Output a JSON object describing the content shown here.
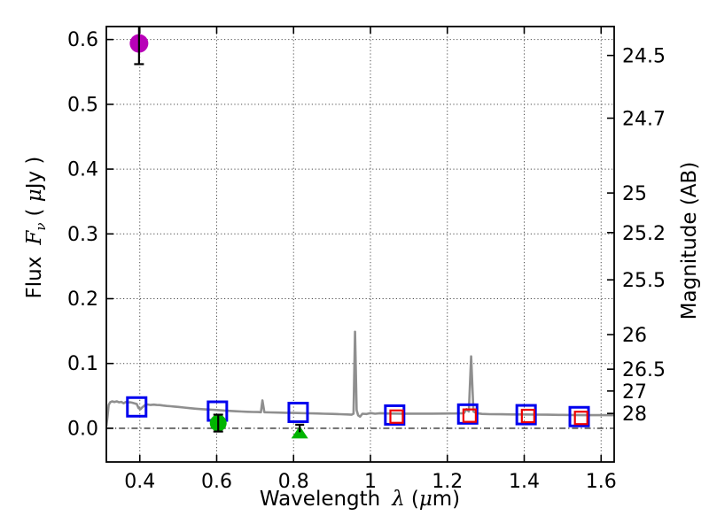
{
  "chart_data": {
    "type": "line",
    "title": "",
    "xlabel": "Wavelength λ (μm)",
    "ylabel_left": "Flux Fν ( μJy )",
    "ylabel_right": "Magnitude (AB)",
    "xlabel_parts": {
      "word": "Wavelength",
      "lambda": "λ",
      "open": "(",
      "mu": "μ",
      "close": "m)"
    },
    "ylabel_left_parts": {
      "word": "Flux",
      "f": "F",
      "nu": "ν",
      "open": "( ",
      "mu": "μ",
      "unit": "Jy",
      "close": " )"
    },
    "xlim": [
      0.313,
      1.634
    ],
    "ylim": [
      -0.052,
      0.62
    ],
    "x_axis": {
      "tick_values": [
        0.4,
        0.6,
        0.8,
        1.0,
        1.2,
        1.4,
        1.6
      ],
      "tick_labels": [
        "0.4",
        "0.6",
        "0.8",
        "1",
        "1.2",
        "1.4",
        "1.6"
      ]
    },
    "y_axis_left": {
      "tick_values": [
        0.0,
        0.1,
        0.2,
        0.3,
        0.4,
        0.5,
        0.6
      ],
      "tick_labels": [
        "0.0",
        "0.1",
        "0.2",
        "0.3",
        "0.4",
        "0.5",
        "0.6"
      ]
    },
    "y_axis_right": {
      "ticks": [
        {
          "label": "24.5",
          "flux": 0.5754
        },
        {
          "label": "24.7",
          "flux": 0.4786
        },
        {
          "label": "25",
          "flux": 0.3631
        },
        {
          "label": "25.2",
          "flux": 0.302
        },
        {
          "label": "25.5",
          "flux": 0.2291
        },
        {
          "label": "26",
          "flux": 0.1445
        },
        {
          "label": "26.5",
          "flux": 0.0912
        },
        {
          "label": "27",
          "flux": 0.0575
        },
        {
          "label": "28",
          "flux": 0.0229
        }
      ]
    },
    "grid": {
      "style": "dotted",
      "zero_line_style": "dash-dot"
    },
    "colors": {
      "spectrum": "#8f8f8f",
      "model_square": "#0000ee",
      "observed_square": "#ee0000",
      "bright_point": "#b800b8",
      "green_point": "#00b400",
      "errorbar": "#000000",
      "frame": "#000000"
    },
    "series": [
      {
        "name": "model-spectrum",
        "type": "line",
        "color_key": "spectrum",
        "line_width": 2.6,
        "points": [
          [
            0.313,
            0.003
          ],
          [
            0.316,
            0.018
          ],
          [
            0.319,
            0.036
          ],
          [
            0.323,
            0.04
          ],
          [
            0.328,
            0.0415
          ],
          [
            0.334,
            0.0405
          ],
          [
            0.34,
            0.0415
          ],
          [
            0.346,
            0.04
          ],
          [
            0.352,
            0.0408
          ],
          [
            0.358,
            0.0385
          ],
          [
            0.363,
            0.0405
          ],
          [
            0.368,
            0.0395
          ],
          [
            0.374,
            0.0402
          ],
          [
            0.38,
            0.0395
          ],
          [
            0.386,
            0.0385
          ],
          [
            0.392,
            0.0375
          ],
          [
            0.397,
            0.031
          ],
          [
            0.402,
            0.0295
          ],
          [
            0.407,
            0.0325
          ],
          [
            0.413,
            0.0355
          ],
          [
            0.42,
            0.0368
          ],
          [
            0.428,
            0.036
          ],
          [
            0.436,
            0.0365
          ],
          [
            0.444,
            0.036
          ],
          [
            0.452,
            0.0358
          ],
          [
            0.46,
            0.0352
          ],
          [
            0.47,
            0.0345
          ],
          [
            0.48,
            0.034
          ],
          [
            0.49,
            0.0335
          ],
          [
            0.5,
            0.033
          ],
          [
            0.515,
            0.032
          ],
          [
            0.53,
            0.031
          ],
          [
            0.545,
            0.0302
          ],
          [
            0.56,
            0.0295
          ],
          [
            0.575,
            0.029
          ],
          [
            0.59,
            0.0286
          ],
          [
            0.605,
            0.028
          ],
          [
            0.62,
            0.0274
          ],
          [
            0.635,
            0.0268
          ],
          [
            0.65,
            0.0263
          ],
          [
            0.665,
            0.0258
          ],
          [
            0.68,
            0.0255
          ],
          [
            0.695,
            0.0252
          ],
          [
            0.708,
            0.025
          ],
          [
            0.715,
            0.0248
          ],
          [
            0.719,
            0.043
          ],
          [
            0.724,
            0.0247
          ],
          [
            0.74,
            0.0245
          ],
          [
            0.76,
            0.0242
          ],
          [
            0.78,
            0.024
          ],
          [
            0.8,
            0.0237
          ],
          [
            0.82,
            0.0234
          ],
          [
            0.84,
            0.0231
          ],
          [
            0.86,
            0.0228
          ],
          [
            0.88,
            0.0225
          ],
          [
            0.9,
            0.0222
          ],
          [
            0.92,
            0.0218
          ],
          [
            0.94,
            0.0213
          ],
          [
            0.951,
            0.021
          ],
          [
            0.956,
            0.0225
          ],
          [
            0.96,
            0.149
          ],
          [
            0.964,
            0.028
          ],
          [
            0.968,
            0.02
          ],
          [
            0.973,
            0.018
          ],
          [
            0.979,
            0.0225
          ],
          [
            0.99,
            0.022
          ],
          [
            1.0,
            0.0235
          ],
          [
            1.012,
            0.0224
          ],
          [
            1.025,
            0.0233
          ],
          [
            1.04,
            0.0229
          ],
          [
            1.06,
            0.0227
          ],
          [
            1.08,
            0.0226
          ],
          [
            1.1,
            0.0226
          ],
          [
            1.13,
            0.0226
          ],
          [
            1.16,
            0.0226
          ],
          [
            1.19,
            0.0227
          ],
          [
            1.22,
            0.0228
          ],
          [
            1.243,
            0.0232
          ],
          [
            1.25,
            0.0295
          ],
          [
            1.256,
            0.0258
          ],
          [
            1.262,
            0.111
          ],
          [
            1.268,
            0.0258
          ],
          [
            1.276,
            0.0234
          ],
          [
            1.29,
            0.0222
          ],
          [
            1.31,
            0.0218
          ],
          [
            1.34,
            0.0216
          ],
          [
            1.37,
            0.0214
          ],
          [
            1.4,
            0.0213
          ],
          [
            1.43,
            0.0211
          ],
          [
            1.46,
            0.0209
          ],
          [
            1.49,
            0.0207
          ],
          [
            1.52,
            0.0205
          ],
          [
            1.55,
            0.0203
          ],
          [
            1.58,
            0.0202
          ],
          [
            1.61,
            0.0202
          ],
          [
            1.634,
            0.0201
          ]
        ]
      },
      {
        "name": "model-photometry-squares",
        "type": "scatter",
        "marker": "open-square",
        "color_key": "model_square",
        "size": 21,
        "stroke_width": 3,
        "points": [
          [
            0.392,
            0.033
          ],
          [
            0.602,
            0.0265
          ],
          [
            0.812,
            0.0245
          ],
          [
            1.063,
            0.0205
          ],
          [
            1.253,
            0.022
          ],
          [
            1.405,
            0.021
          ],
          [
            1.543,
            0.018
          ]
        ]
      },
      {
        "name": "observed-photometry-squares",
        "type": "scatter",
        "marker": "open-square",
        "color_key": "observed_square",
        "size": 14,
        "stroke_width": 2.2,
        "points": [
          [
            1.068,
            0.018
          ],
          [
            1.258,
            0.0195
          ],
          [
            1.41,
            0.019
          ],
          [
            1.548,
            0.016
          ]
        ]
      },
      {
        "name": "observed-point-magenta",
        "type": "scatter",
        "marker": "circle",
        "color_key": "bright_point",
        "size": 21,
        "points": [
          [
            0.398,
            0.594
          ]
        ],
        "yerr": [
          [
            0.032,
            0.038
          ]
        ]
      },
      {
        "name": "observed-point-green",
        "type": "scatter",
        "marker": "circle",
        "color_key": "green_point",
        "size": 19,
        "points": [
          [
            0.604,
            0.008
          ]
        ],
        "yerr": [
          [
            0.013,
            0.013
          ]
        ]
      },
      {
        "name": "upper-limit-triangle",
        "type": "scatter",
        "marker": "triangle-up",
        "color_key": "green_point",
        "size": 19,
        "points": [
          [
            0.816,
            -0.006
          ]
        ],
        "cap_flux": 0.0055
      }
    ]
  }
}
